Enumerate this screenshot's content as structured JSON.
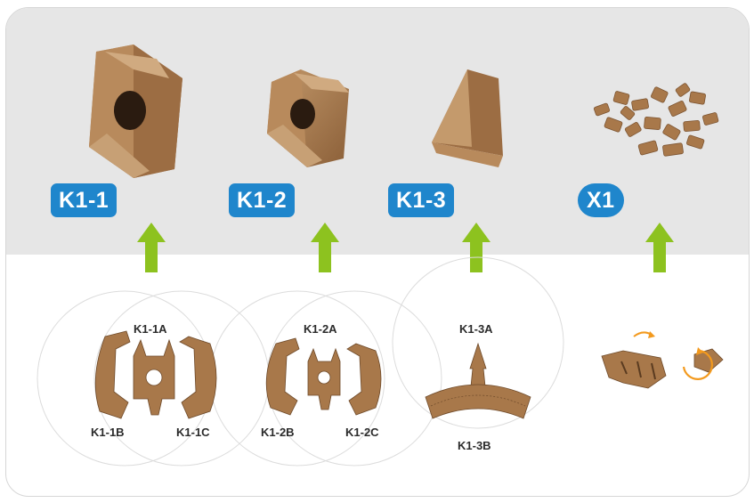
{
  "colors": {
    "top_band": "#e6e6e6",
    "badge": "#1f86cc",
    "arrow": "#8dc21f",
    "cardboard": "#a8784a",
    "cardboard_dark": "#7d5532",
    "rotate_arrow": "#f39a1e"
  },
  "kits": [
    {
      "badge": "K1-1",
      "parts": [
        "K1-1A",
        "K1-1B",
        "K1-1C"
      ]
    },
    {
      "badge": "K1-2",
      "parts": [
        "K1-2A",
        "K1-2B",
        "K1-2C"
      ]
    },
    {
      "badge": "K1-3",
      "parts": [
        "K1-3A",
        "K1-3B"
      ]
    },
    {
      "badge": "X1",
      "parts": []
    }
  ],
  "icons": [
    "up-arrow-icon",
    "rotate-icon"
  ]
}
